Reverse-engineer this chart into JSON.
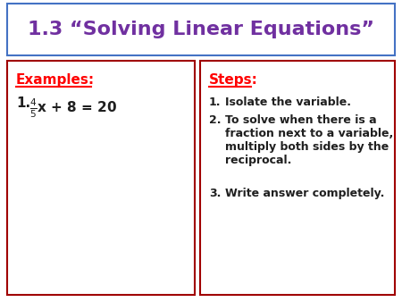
{
  "title": "1.3 “Solving Linear Equations”",
  "title_color": "#7030A0",
  "title_fontsize": 16,
  "title_fontweight": "bold",
  "bg_color": "#ffffff",
  "header_border_color": "#4472C4",
  "left_box_border_color": "#A00000",
  "right_box_border_color": "#A00000",
  "examples_label": "Examples:",
  "examples_color": "#FF0000",
  "steps_label": "Steps:",
  "steps_color": "#FF0000",
  "example1_num": "1.",
  "example1_frac_num": "4",
  "example1_frac_den": "5",
  "example1_rest": "x + 8 = 20",
  "steps": [
    "Isolate the variable.",
    "To solve when there is a\nfraction next to a variable,\nmultiply both sides by the\nreciprocal.",
    "Write answer completely."
  ],
  "body_color": "#1F1F1F",
  "body_fontsize": 10,
  "step_nums": [
    "1.",
    "2.",
    "3."
  ]
}
